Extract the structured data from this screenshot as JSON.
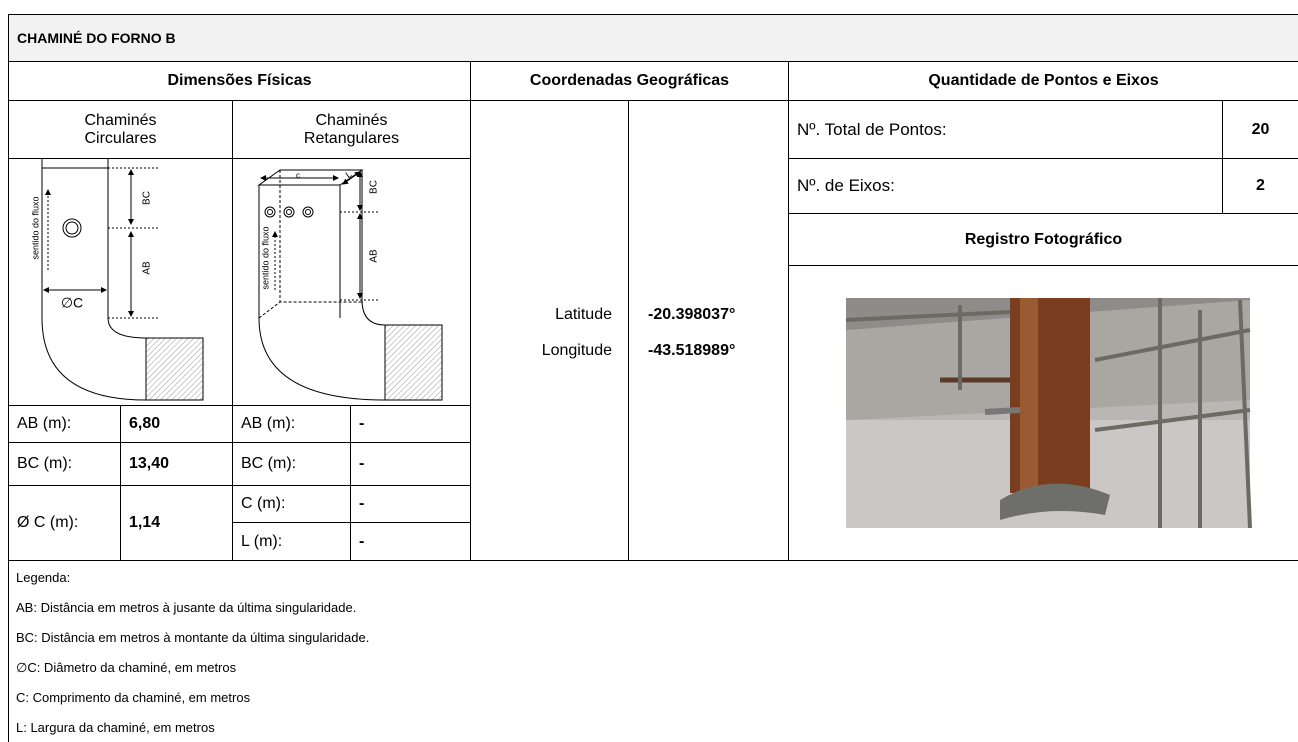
{
  "header": {
    "title": "CHAMINÉ DO FORNO B"
  },
  "sections": {
    "dimensions": "Dimensões Físicas",
    "coordinates": "Coordenadas Geográficas",
    "points": "Quantidade de Pontos e Eixos"
  },
  "dimensions": {
    "circular": {
      "title": "Chaminés Circulares",
      "diagram": {
        "flow": "sentido do fluxo",
        "bc": "BC",
        "ab": "AB",
        "diameter": "∅C"
      },
      "rows": [
        {
          "label": "AB (m):",
          "value": "6,80"
        },
        {
          "label": "BC (m):",
          "value": "13,40"
        },
        {
          "label": "Ø C (m):",
          "value": "1,14"
        }
      ]
    },
    "rectangular": {
      "title": "Chaminés Retangulares",
      "diagram": {
        "flow": "sentido do fluxo",
        "c": "c",
        "l": "L",
        "bc": "BC",
        "ab": "AB"
      },
      "rows": [
        {
          "label": "AB (m):",
          "value": "-"
        },
        {
          "label": "BC (m):",
          "value": "-"
        },
        {
          "label": "C (m):",
          "value": "-"
        },
        {
          "label": "L (m):",
          "value": "-"
        }
      ]
    }
  },
  "coordinates": {
    "latitude": {
      "label": "Latitude",
      "value": "-20.398037°"
    },
    "longitude": {
      "label": "Longitude",
      "value": "-43.518989°"
    }
  },
  "points": {
    "total": {
      "label": "Nº. Total de Pontos:",
      "value": "20"
    },
    "axes": {
      "label": "Nº. de Eixos:",
      "value": "2"
    },
    "photo_title": "Registro Fotográfico"
  },
  "legend": {
    "title": "Legenda:",
    "items": [
      "AB: Distância em metros à jusante da última singularidade.",
      "BC: Distância em metros à montante da última singularidade.",
      "∅C: Diâmetro da chaminé, em metros",
      "C: Comprimento da chaminé, em metros",
      "L: Largura da chaminé, em metros"
    ]
  }
}
